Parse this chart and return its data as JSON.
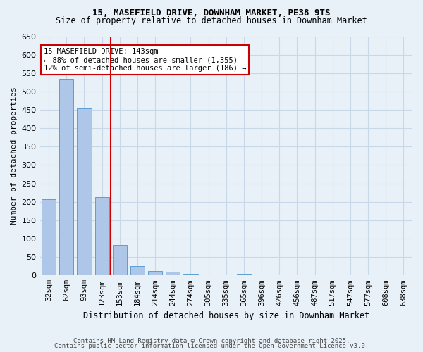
{
  "title_line1": "15, MASEFIELD DRIVE, DOWNHAM MARKET, PE38 9TS",
  "title_line2": "Size of property relative to detached houses in Downham Market",
  "xlabel": "Distribution of detached houses by size in Downham Market",
  "ylabel": "Number of detached properties",
  "categories": [
    "32sqm",
    "62sqm",
    "93sqm",
    "123sqm",
    "153sqm",
    "184sqm",
    "214sqm",
    "244sqm",
    "274sqm",
    "305sqm",
    "335sqm",
    "365sqm",
    "396sqm",
    "426sqm",
    "456sqm",
    "487sqm",
    "517sqm",
    "547sqm",
    "577sqm",
    "608sqm",
    "638sqm"
  ],
  "values": [
    208,
    535,
    453,
    213,
    82,
    25,
    13,
    10,
    5,
    0,
    0,
    4,
    0,
    0,
    0,
    2,
    0,
    0,
    0,
    2,
    0
  ],
  "bar_color": "#aec6e8",
  "bar_edge_color": "#5a9fd4",
  "grid_color": "#c8d8e8",
  "background_color": "#e8f0f8",
  "vline_x": 4,
  "vline_color": "#cc0000",
  "annotation_title": "15 MASEFIELD DRIVE: 143sqm",
  "annotation_line1": "← 88% of detached houses are smaller (1,355)",
  "annotation_line2": "12% of semi-detached houses are larger (186) →",
  "annotation_box_color": "#cc0000",
  "ylim": [
    0,
    650
  ],
  "yticks": [
    0,
    50,
    100,
    150,
    200,
    250,
    300,
    350,
    400,
    450,
    500,
    550,
    600,
    650
  ],
  "footnote_line1": "Contains HM Land Registry data © Crown copyright and database right 2025.",
  "footnote_line2": "Contains public sector information licensed under the Open Government Licence v3.0."
}
